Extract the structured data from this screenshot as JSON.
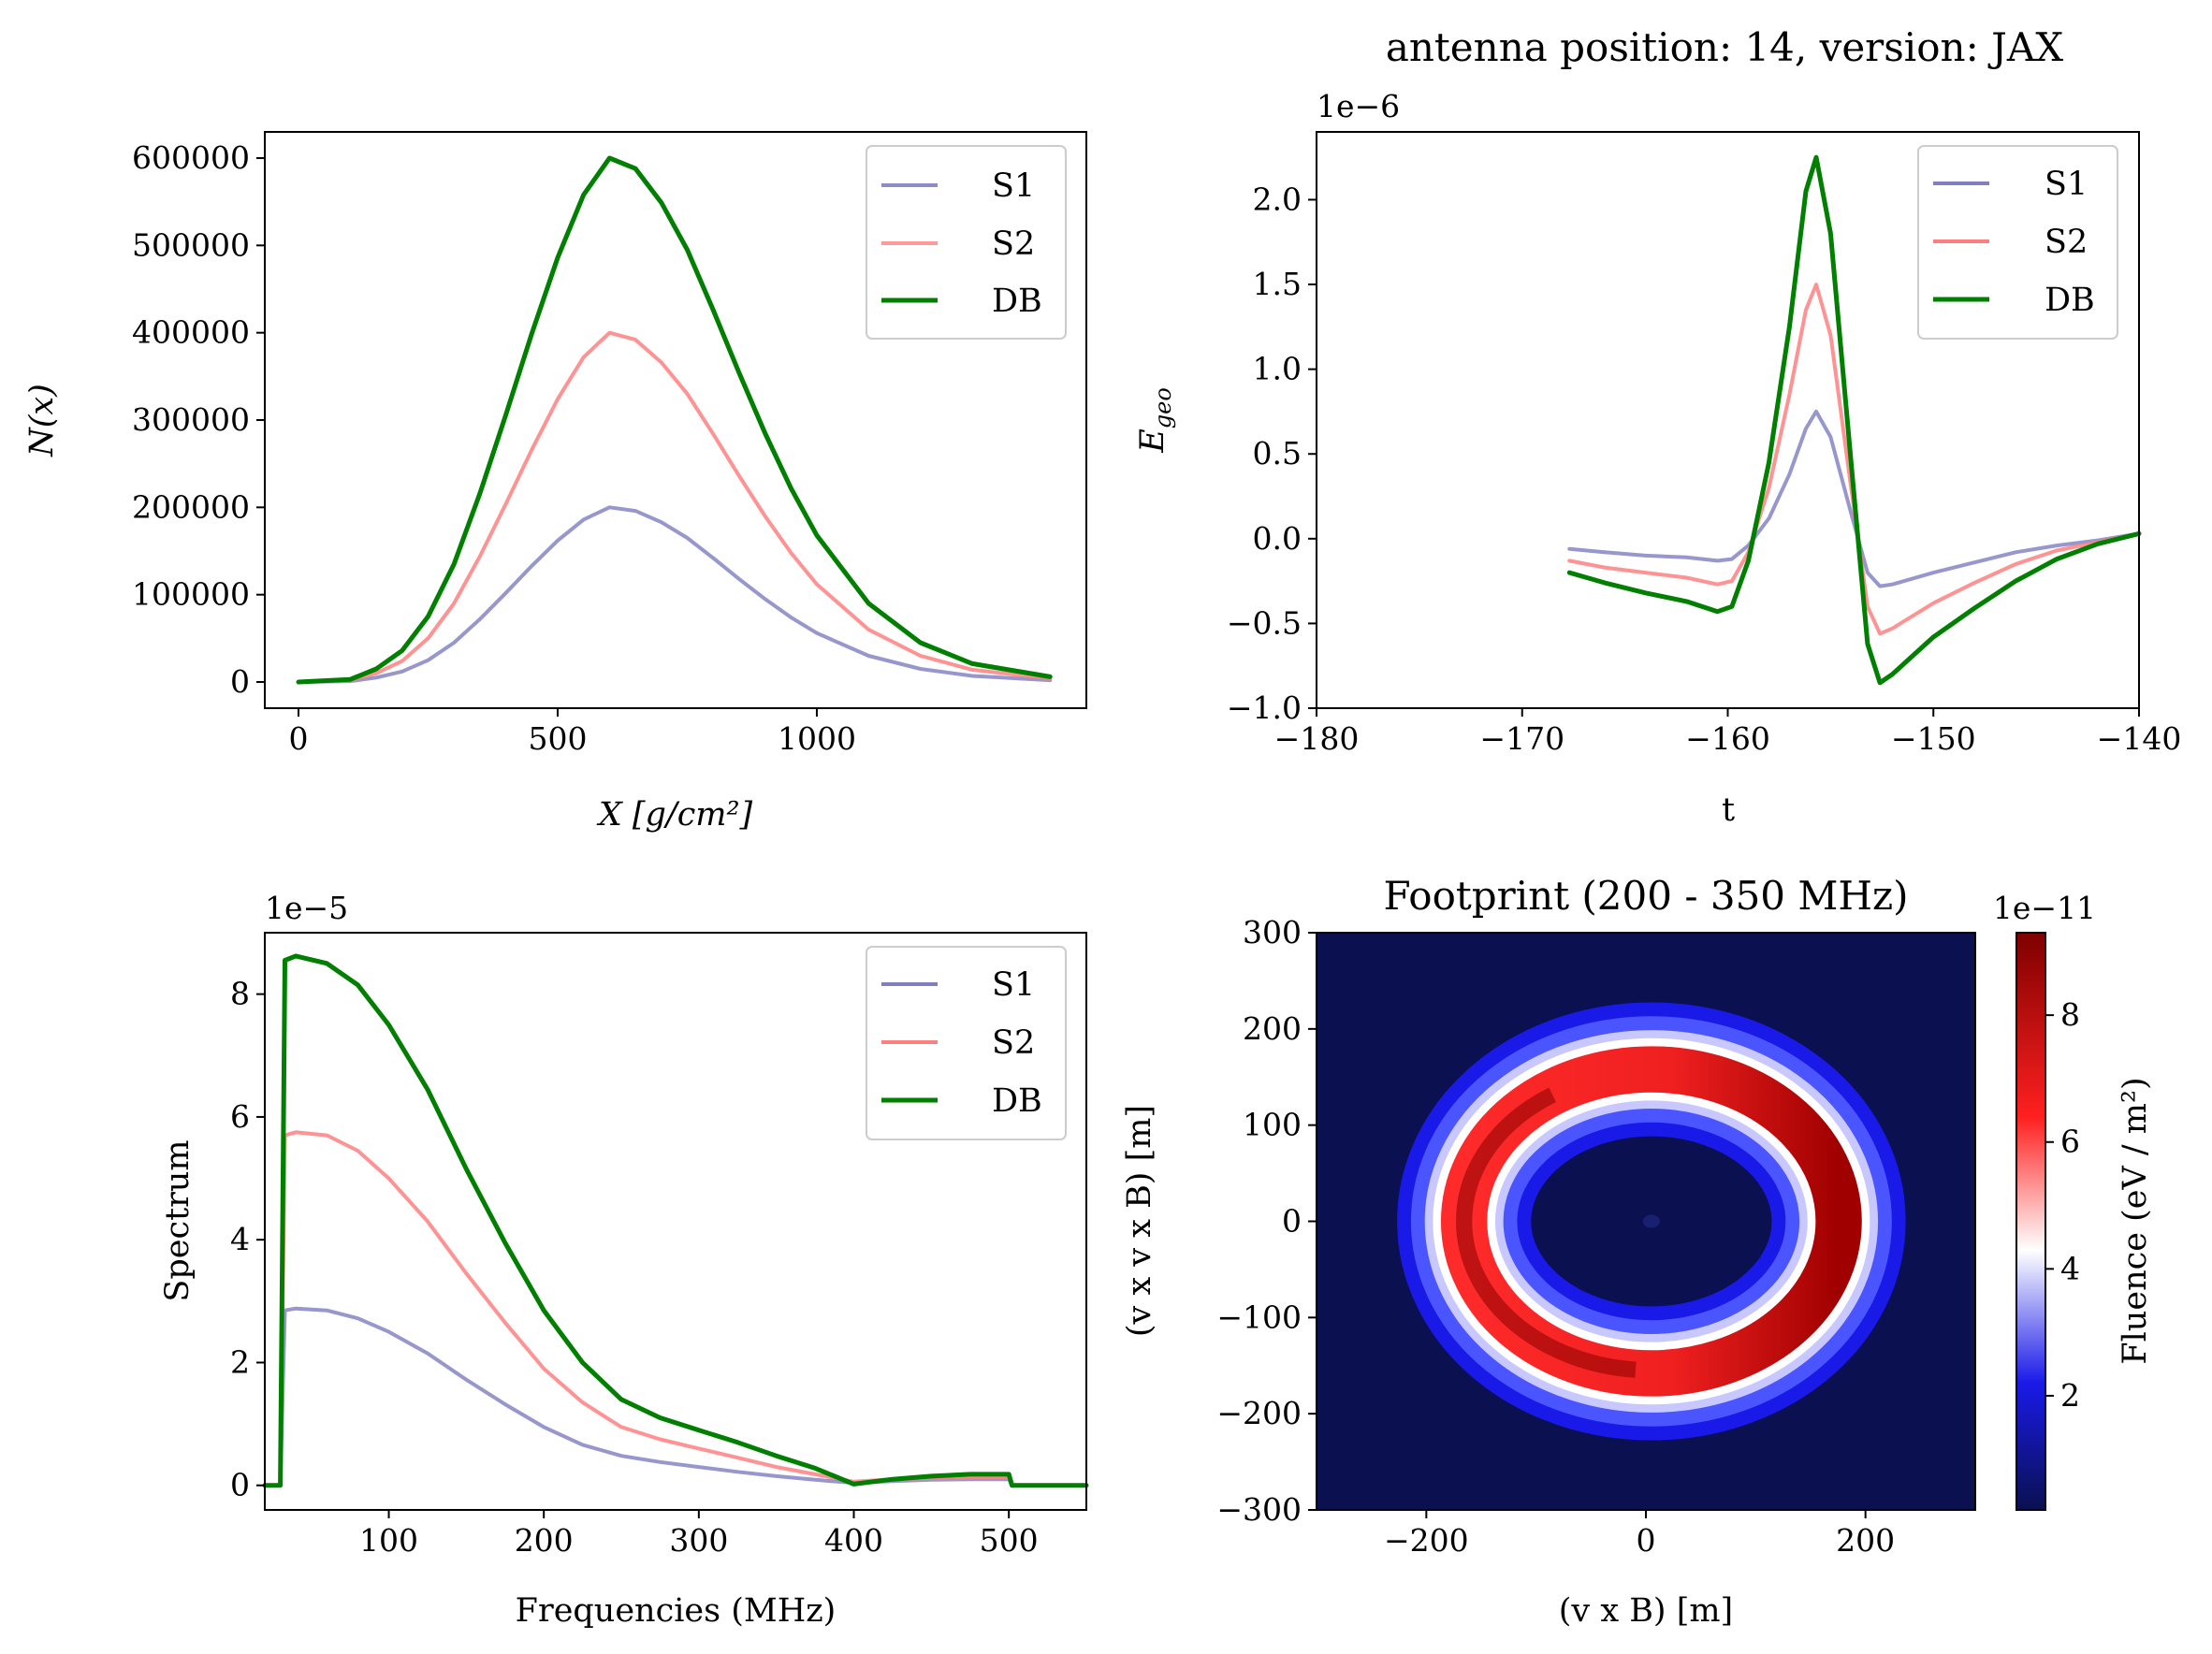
{
  "figure_title": "antenna position: 14, version: JAX",
  "colors": {
    "S1": "#8c8cc8",
    "S2": "#ff7f7f",
    "DB": "#007f00",
    "axis": "#000000"
  },
  "chart_data": [
    {
      "id": "profile",
      "type": "line",
      "title": "",
      "xlabel": "X [g/cm²]",
      "ylabel": "N(x)",
      "xlim": [
        -65,
        1520
      ],
      "ylim": [
        -30000,
        630000
      ],
      "x_ticks": [
        0,
        500,
        1000
      ],
      "y_ticks": [
        0,
        100000,
        200000,
        300000,
        400000,
        500000,
        600000
      ],
      "x_tick_labels": [
        "0",
        "500",
        "1000"
      ],
      "y_tick_labels": [
        "0",
        "100000",
        "200000",
        "300000",
        "400000",
        "500000",
        "600000"
      ],
      "legend": [
        "S1",
        "S2",
        "DB"
      ],
      "legend_position": "top-right",
      "grid": false,
      "series": [
        {
          "name": "S1",
          "x": [
            0,
            100,
            150,
            200,
            250,
            300,
            350,
            400,
            450,
            500,
            550,
            600,
            650,
            700,
            750,
            800,
            850,
            900,
            950,
            1000,
            1100,
            1200,
            1300,
            1450
          ],
          "y": [
            0,
            1000,
            5000,
            12000,
            25000,
            45000,
            72000,
            102000,
            133000,
            162000,
            186000,
            200000,
            196000,
            183000,
            165000,
            142000,
            118000,
            95000,
            74000,
            56000,
            30000,
            15000,
            7000,
            2000
          ]
        },
        {
          "name": "S2",
          "x": [
            0,
            100,
            150,
            200,
            250,
            300,
            350,
            400,
            450,
            500,
            550,
            600,
            650,
            700,
            750,
            800,
            850,
            900,
            950,
            1000,
            1100,
            1200,
            1300,
            1450
          ],
          "y": [
            0,
            2000,
            10000,
            24000,
            50000,
            90000,
            144000,
            204000,
            266000,
            324000,
            372000,
            400000,
            392000,
            366000,
            330000,
            284000,
            236000,
            190000,
            148000,
            112000,
            60000,
            30000,
            14000,
            4000
          ]
        },
        {
          "name": "DB",
          "x": [
            0,
            100,
            150,
            200,
            250,
            300,
            350,
            400,
            450,
            500,
            550,
            600,
            650,
            700,
            750,
            800,
            850,
            900,
            950,
            1000,
            1100,
            1200,
            1300,
            1450
          ],
          "y": [
            0,
            3000,
            15000,
            36000,
            75000,
            135000,
            216000,
            306000,
            399000,
            486000,
            558000,
            600000,
            588000,
            549000,
            495000,
            426000,
            354000,
            285000,
            222000,
            168000,
            90000,
            45000,
            21000,
            6000
          ]
        }
      ]
    },
    {
      "id": "efield",
      "type": "line",
      "title": "antenna position: 14, version: JAX",
      "xlabel": "t",
      "ylabel": "E_geo",
      "offset_label": "1e−6",
      "xlim": [
        -180,
        -140
      ],
      "ylim": [
        -1.0,
        2.4
      ],
      "x_ticks": [
        -180,
        -170,
        -160,
        -150,
        -140
      ],
      "x_tick_labels": [
        "−180",
        "−170",
        "−160",
        "−150",
        "−140"
      ],
      "y_ticks": [
        -1.0,
        -0.5,
        0.0,
        0.5,
        1.0,
        1.5,
        2.0
      ],
      "y_tick_labels": [
        "−1.0",
        "−0.5",
        "0.0",
        "0.5",
        "1.0",
        "1.5",
        "2.0"
      ],
      "legend": [
        "S1",
        "S2",
        "DB"
      ],
      "legend_position": "top-right",
      "grid": false,
      "series": [
        {
          "name": "S1",
          "x": [
            -167.7,
            -166,
            -164,
            -162,
            -160.5,
            -159.8,
            -159,
            -158,
            -157,
            -156.2,
            -155.7,
            -155,
            -154,
            -153.2,
            -152.6,
            -152,
            -150,
            -148,
            -146,
            -144,
            -142,
            -140
          ],
          "y": [
            -0.06,
            -0.08,
            -0.1,
            -0.11,
            -0.13,
            -0.12,
            -0.04,
            0.12,
            0.38,
            0.65,
            0.75,
            0.6,
            0.15,
            -0.2,
            -0.28,
            -0.27,
            -0.2,
            -0.14,
            -0.08,
            -0.04,
            -0.01,
            0.03
          ]
        },
        {
          "name": "S2",
          "x": [
            -167.7,
            -166,
            -164,
            -162,
            -160.5,
            -159.8,
            -159,
            -158,
            -157,
            -156.2,
            -155.7,
            -155,
            -154,
            -153.2,
            -152.6,
            -152,
            -150,
            -148,
            -146,
            -144,
            -142,
            -140
          ],
          "y": [
            -0.13,
            -0.17,
            -0.2,
            -0.23,
            -0.27,
            -0.25,
            -0.08,
            0.3,
            0.85,
            1.35,
            1.5,
            1.2,
            0.3,
            -0.4,
            -0.56,
            -0.53,
            -0.38,
            -0.26,
            -0.15,
            -0.07,
            -0.02,
            0.03
          ]
        },
        {
          "name": "DB",
          "x": [
            -167.7,
            -166,
            -164,
            -162,
            -160.5,
            -159.8,
            -159,
            -158,
            -157,
            -156.2,
            -155.7,
            -155,
            -154,
            -153.2,
            -152.6,
            -152,
            -150,
            -148,
            -146,
            -144,
            -142,
            -140
          ],
          "y": [
            -0.2,
            -0.26,
            -0.32,
            -0.37,
            -0.43,
            -0.4,
            -0.13,
            0.45,
            1.25,
            2.05,
            2.25,
            1.8,
            0.45,
            -0.62,
            -0.85,
            -0.8,
            -0.58,
            -0.41,
            -0.25,
            -0.12,
            -0.03,
            0.03
          ]
        }
      ]
    },
    {
      "id": "spectrum",
      "type": "line",
      "title": "",
      "xlabel": "Frequencies (MHz)",
      "ylabel": "Spectrum",
      "offset_label": "1e−5",
      "xlim": [
        20,
        550
      ],
      "ylim": [
        -0.4,
        9.0
      ],
      "x_ticks": [
        100,
        200,
        300,
        400,
        500
      ],
      "x_tick_labels": [
        "100",
        "200",
        "300",
        "400",
        "500"
      ],
      "y_ticks": [
        0,
        2,
        4,
        6,
        8
      ],
      "y_tick_labels": [
        "0",
        "2",
        "4",
        "6",
        "8"
      ],
      "legend": [
        "S1",
        "S2",
        "DB"
      ],
      "legend_position": "top-right",
      "grid": false,
      "series": [
        {
          "name": "S1",
          "x": [
            20,
            30,
            33,
            40,
            60,
            80,
            100,
            125,
            150,
            175,
            200,
            225,
            250,
            275,
            300,
            325,
            350,
            375,
            400,
            425,
            450,
            475,
            500,
            502,
            550
          ],
          "y": [
            0,
            0,
            2.85,
            2.88,
            2.85,
            2.72,
            2.5,
            2.15,
            1.72,
            1.32,
            0.95,
            0.66,
            0.48,
            0.38,
            0.3,
            0.22,
            0.15,
            0.09,
            0.04,
            0.07,
            0.09,
            0.1,
            0.1,
            0,
            0
          ]
        },
        {
          "name": "S2",
          "x": [
            20,
            30,
            33,
            40,
            60,
            80,
            100,
            125,
            150,
            175,
            200,
            225,
            250,
            275,
            300,
            325,
            350,
            375,
            400,
            425,
            450,
            475,
            500,
            502,
            550
          ],
          "y": [
            0,
            0,
            5.7,
            5.75,
            5.7,
            5.45,
            5.0,
            4.3,
            3.45,
            2.65,
            1.9,
            1.35,
            0.95,
            0.75,
            0.6,
            0.45,
            0.3,
            0.18,
            0.06,
            0.1,
            0.12,
            0.13,
            0.13,
            0,
            0
          ]
        },
        {
          "name": "DB",
          "x": [
            20,
            30,
            33,
            40,
            60,
            80,
            100,
            125,
            150,
            175,
            200,
            225,
            250,
            275,
            300,
            325,
            350,
            375,
            400,
            425,
            450,
            475,
            500,
            502,
            550
          ],
          "y": [
            0,
            0,
            8.55,
            8.62,
            8.5,
            8.15,
            7.5,
            6.45,
            5.15,
            3.95,
            2.85,
            2.0,
            1.4,
            1.1,
            0.9,
            0.7,
            0.48,
            0.28,
            0.02,
            0.1,
            0.15,
            0.18,
            0.18,
            0,
            0
          ]
        }
      ]
    },
    {
      "id": "footprint",
      "type": "heatmap",
      "title": "Footprint (200 - 350 MHz)",
      "xlabel": "(v x B) [m]",
      "ylabel": "(v x v x B) [m]",
      "xlim": [
        -300,
        300
      ],
      "ylim": [
        -300,
        300
      ],
      "x_ticks": [
        -200,
        0,
        200
      ],
      "x_tick_labels": [
        "−200",
        "0",
        "200"
      ],
      "y_ticks": [
        -300,
        -200,
        -100,
        0,
        100,
        200,
        300
      ],
      "y_tick_labels": [
        "−300",
        "−200",
        "−100",
        "0",
        "100",
        "200",
        "300"
      ],
      "colorbar_label": "Fluence (eV / m²)",
      "colorbar_offset": "1e−11",
      "colorbar_ticks": [
        2,
        4,
        6,
        8
      ],
      "colorbar_tick_labels": [
        "2",
        "4",
        "6",
        "8"
      ],
      "colorbar_range": [
        0.2,
        9.3
      ],
      "colormap": "seismic",
      "ring": {
        "center_x": 5,
        "center_y": 0,
        "peak_radius": 158,
        "ring_width": 24,
        "x_squash": 1.08,
        "peak_value": 9.1,
        "background_value": 0.2,
        "bright_side": "right"
      }
    }
  ]
}
